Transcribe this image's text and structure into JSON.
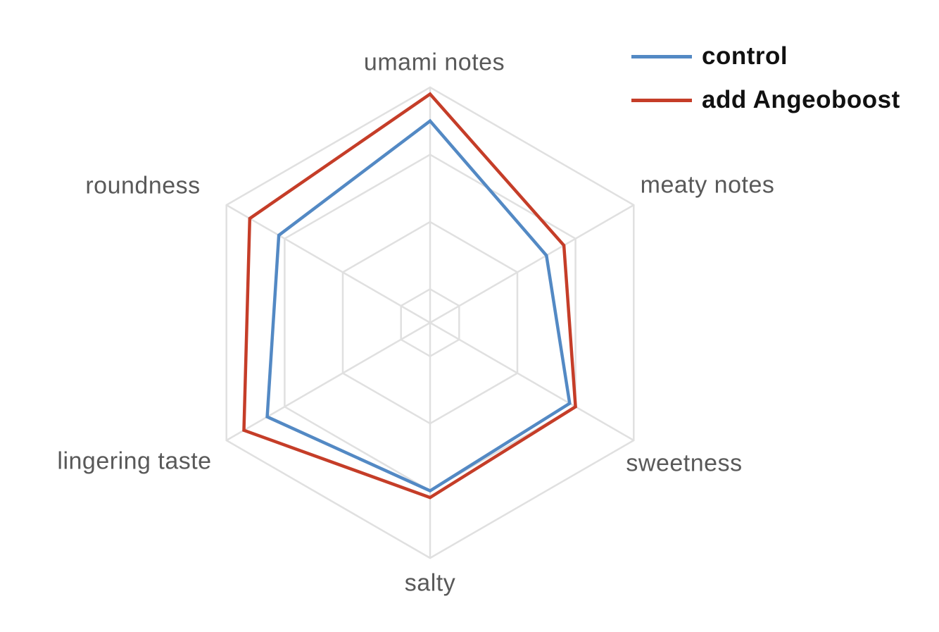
{
  "chart_data": {
    "type": "radar",
    "categories": [
      "umami notes",
      "meaty notes",
      "sweetness",
      "salty",
      "lingering taste",
      "roundness"
    ],
    "series": [
      {
        "name": "control",
        "color": "#5389C4",
        "values": [
          6.0,
          4.0,
          4.8,
          5.0,
          5.6,
          5.2
        ]
      },
      {
        "name": "add Angeoboost",
        "color": "#C53D28",
        "values": [
          6.8,
          4.6,
          5.0,
          5.2,
          6.4,
          6.2
        ]
      }
    ],
    "axis_min": 0,
    "axis_max": 7,
    "grid_levels": [
      1,
      3,
      5,
      7
    ],
    "grid_shape": "hexagon",
    "grid_color": "#E0E0E0",
    "label_color": "#595959",
    "start_axis": "top",
    "direction": "clockwise",
    "legend_position": "top-right",
    "legend_marker": "line",
    "title": "",
    "tick_labels_shown": false
  }
}
